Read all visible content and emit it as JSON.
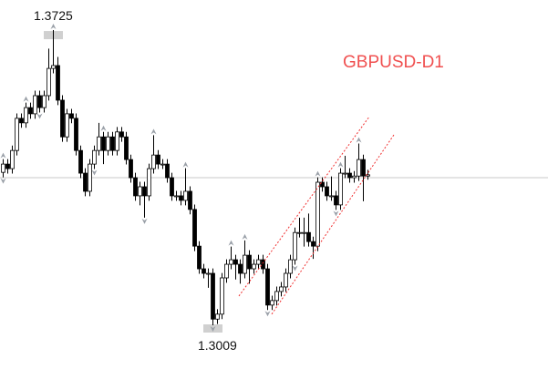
{
  "chart_data": {
    "type": "candlestick",
    "title": "GBPUSD-D1",
    "title_color": "#f05050",
    "ylim": [
      1.2903,
      1.3798
    ],
    "grid": false,
    "bull_color": "#ffffff",
    "bear_color": "#000000",
    "open_first": 1.338,
    "close": [
      1.34,
      1.3389,
      1.3433,
      1.3511,
      1.35,
      1.3537,
      1.3522,
      1.3566,
      1.3537,
      1.3566,
      1.3632,
      1.3639,
      1.3555,
      1.3466,
      1.3522,
      1.3511,
      1.3433,
      1.3378,
      1.3334,
      1.34,
      1.3433,
      1.3466,
      1.3433,
      1.3466,
      1.3433,
      1.3478,
      1.3466,
      1.3411,
      1.3367,
      1.3323,
      1.3345,
      1.3323,
      1.3389,
      1.3422,
      1.34,
      1.34,
      1.3367,
      1.3323,
      1.3323,
      1.3312,
      1.3334,
      1.329,
      1.3201,
      1.3146,
      1.3135,
      1.3135,
      1.3024,
      1.3036,
      1.3124,
      1.3157,
      1.3168,
      1.3157,
      1.3135,
      1.3179,
      1.3146,
      1.3157,
      1.3168,
      1.3146,
      1.3058,
      1.3069,
      1.3091,
      1.3102,
      1.3135,
      1.3168,
      1.3234,
      1.3234,
      1.3234,
      1.3212,
      1.3201,
      1.3356,
      1.3345,
      1.3323,
      1.3323,
      1.3301,
      1.3378,
      1.3378,
      1.3367,
      1.3371,
      1.3411,
      1.3371,
      1.3374
    ],
    "high": [
      1.3412,
      1.3412,
      1.3445,
      1.3523,
      1.3523,
      1.3549,
      1.3549,
      1.3578,
      1.3578,
      1.3578,
      1.368,
      1.3725,
      1.366,
      1.3567,
      1.3534,
      1.3534,
      1.3523,
      1.3445,
      1.339,
      1.3412,
      1.3445,
      1.35,
      1.3478,
      1.3478,
      1.3478,
      1.349,
      1.349,
      1.3478,
      1.3423,
      1.3379,
      1.3357,
      1.3357,
      1.3401,
      1.347,
      1.3434,
      1.3412,
      1.3412,
      1.3379,
      1.3335,
      1.3335,
      1.339,
      1.3346,
      1.3302,
      1.3213,
      1.3158,
      1.3147,
      1.3147,
      1.3048,
      1.3136,
      1.3169,
      1.32,
      1.318,
      1.3169,
      1.3215,
      1.3191,
      1.3169,
      1.318,
      1.318,
      1.3158,
      1.3081,
      1.3103,
      1.3114,
      1.3147,
      1.318,
      1.3246,
      1.327,
      1.327,
      1.328,
      1.3224,
      1.3368,
      1.3368,
      1.3357,
      1.337,
      1.3335,
      1.339,
      1.342,
      1.339,
      1.3383,
      1.345,
      1.3423,
      1.3386
    ],
    "low": [
      1.3368,
      1.3377,
      1.3377,
      1.3421,
      1.3488,
      1.3488,
      1.351,
      1.351,
      1.3525,
      1.3525,
      1.3554,
      1.362,
      1.3543,
      1.3454,
      1.3454,
      1.3499,
      1.3421,
      1.3366,
      1.3322,
      1.3322,
      1.3388,
      1.3421,
      1.34,
      1.3421,
      1.3421,
      1.3421,
      1.3454,
      1.3399,
      1.3355,
      1.3311,
      1.33,
      1.327,
      1.3311,
      1.3377,
      1.3388,
      1.3388,
      1.3355,
      1.3311,
      1.3311,
      1.33,
      1.33,
      1.3278,
      1.3189,
      1.3134,
      1.3123,
      1.31,
      1.3009,
      1.3012,
      1.3024,
      1.3112,
      1.3145,
      1.312,
      1.311,
      1.3123,
      1.311,
      1.3134,
      1.3145,
      1.3134,
      1.3046,
      1.3046,
      1.3057,
      1.3079,
      1.309,
      1.3123,
      1.3156,
      1.3222,
      1.32,
      1.32,
      1.317,
      1.3189,
      1.3333,
      1.3311,
      1.3311,
      1.3289,
      1.3289,
      1.3366,
      1.3355,
      1.3355,
      1.3359,
      1.331,
      1.3362
    ],
    "high_label": "1.3725",
    "low_label": "1.3009",
    "high_index": 11,
    "low_index": 46,
    "horizontal_line": 1.3367,
    "channel": {
      "color": "#f03030",
      "upper": [
        [
          51.8,
          1.308
        ],
        [
          80.4,
          1.3515
        ]
      ],
      "lower": [
        [
          59,
          1.3036
        ],
        [
          85.8,
          1.3471
        ]
      ]
    },
    "fractals_up": [
      0,
      5,
      11,
      22,
      33,
      40,
      50,
      53,
      69,
      74,
      78
    ],
    "fractals_down": [
      0,
      8,
      20,
      31,
      46,
      58,
      64,
      73
    ]
  }
}
